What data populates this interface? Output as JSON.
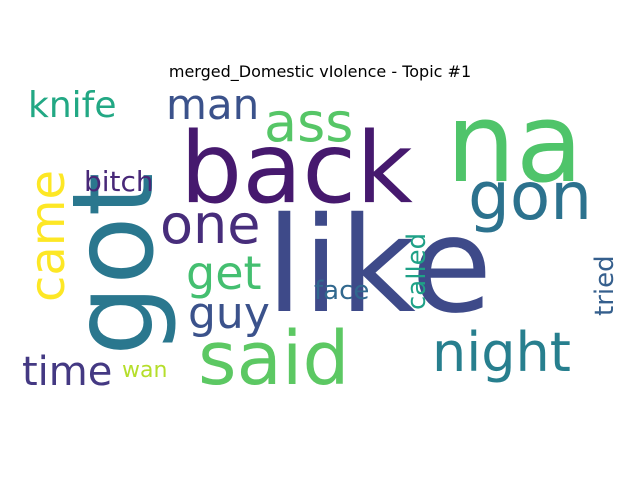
{
  "title": "merged_Domestic vIolence - Topic #1",
  "words": [
    {
      "text": "na",
      "color": "#4fc46a"
    },
    {
      "text": "like",
      "color": "#3e4a89"
    },
    {
      "text": "back",
      "color": "#46196e"
    },
    {
      "text": "got",
      "color": "#2a778e"
    },
    {
      "text": "said",
      "color": "#5cc863"
    },
    {
      "text": "gon",
      "color": "#2c728e"
    },
    {
      "text": "night",
      "color": "#277f8e"
    },
    {
      "text": "ass",
      "color": "#56c667"
    },
    {
      "text": "man",
      "color": "#3b528b"
    },
    {
      "text": "knife",
      "color": "#22a884"
    },
    {
      "text": "one",
      "color": "#472d7b"
    },
    {
      "text": "get",
      "color": "#44bf70"
    },
    {
      "text": "came",
      "color": "#fde725"
    },
    {
      "text": "guy",
      "color": "#3b528b"
    },
    {
      "text": "bitch",
      "color": "#482878"
    },
    {
      "text": "face",
      "color": "#31688e"
    },
    {
      "text": "called",
      "color": "#1fa187"
    },
    {
      "text": "tried",
      "color": "#355f8d"
    },
    {
      "text": "time",
      "color": "#443983"
    },
    {
      "text": "wan",
      "color": "#b5de2b"
    }
  ]
}
